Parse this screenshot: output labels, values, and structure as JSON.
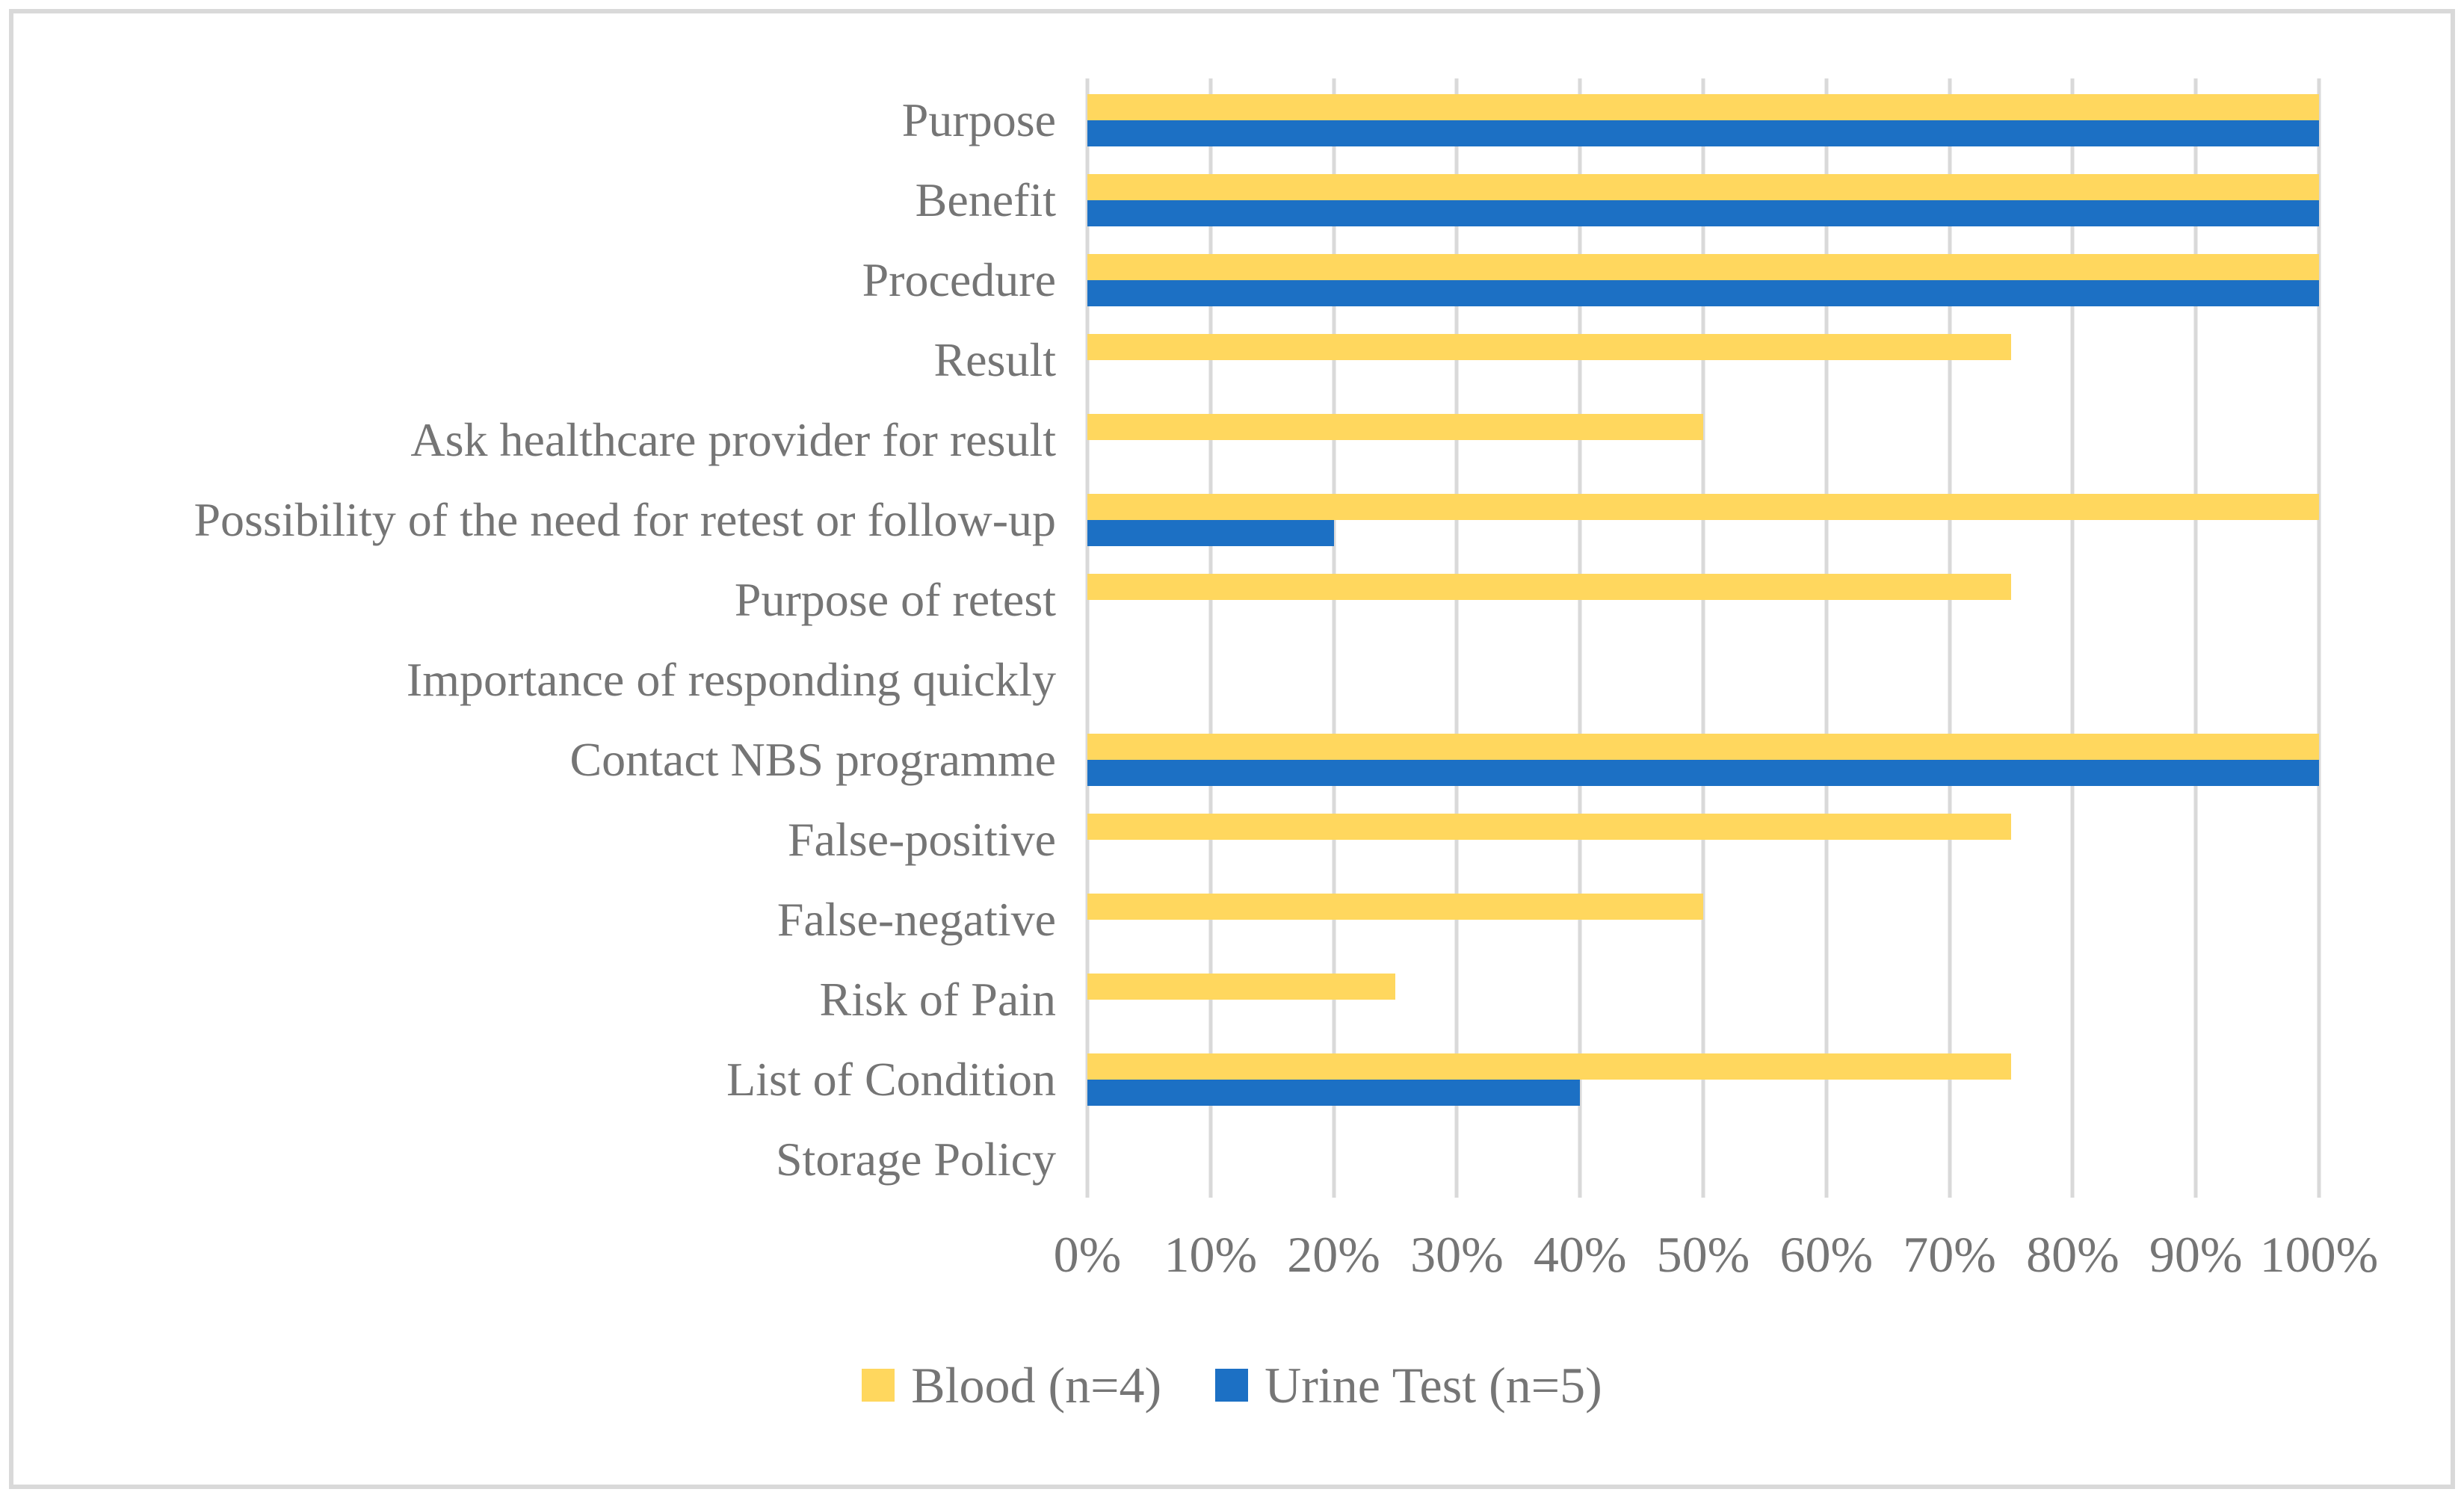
{
  "figure": {
    "background": "#FFFFFF",
    "border_color": "#D9D9D9",
    "text_color": "#757575",
    "gridline_color": "#D9D9D9"
  },
  "chart_data": {
    "type": "bar",
    "orientation": "horizontal",
    "title": "",
    "categories": [
      "Purpose",
      "Benefit",
      "Procedure",
      "Result",
      "Ask healthcare provider for result",
      "Possibility of the need for retest or follow-up",
      "Purpose of retest",
      "Importance of responding quickly",
      "Contact NBS programme",
      "False-positive",
      "False-negative",
      "Risk of Pain",
      "List of Condition",
      "Storage Policy"
    ],
    "series": [
      {
        "name": "Blood (n=4)",
        "color": "#FFD75E",
        "values": [
          100,
          100,
          100,
          75,
          50,
          100,
          75,
          0,
          100,
          75,
          50,
          25,
          75,
          0
        ]
      },
      {
        "name": "Urine Test (n=5)",
        "color": "#1C70C4",
        "values": [
          100,
          100,
          100,
          0,
          0,
          20,
          0,
          0,
          100,
          0,
          0,
          0,
          40,
          0
        ]
      }
    ],
    "x_axis": {
      "min": 0,
      "max": 100,
      "tick_labels": [
        "0%",
        "10%",
        "20%",
        "30%",
        "40%",
        "50%",
        "60%",
        "70%",
        "80%",
        "90%",
        "100%"
      ]
    },
    "grid": "vertical",
    "legend_position": "bottom"
  }
}
